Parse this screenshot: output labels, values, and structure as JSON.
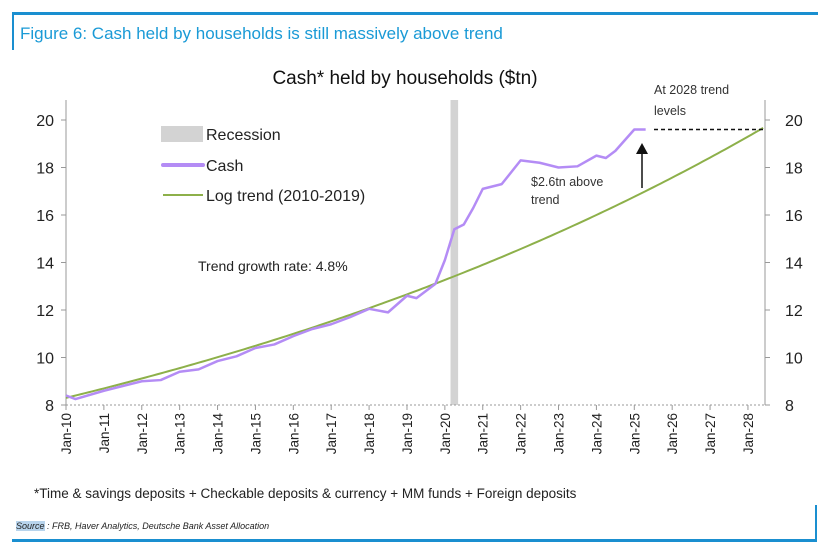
{
  "figure_title": "Figure 6: Cash held by households is still massively above trend",
  "footnote": "*Time & savings deposits + Checkable deposits & currency + MM funds + Foreign deposits",
  "source_label": "Source",
  "source_text": " : FRB, Haver Analytics, Deutsche Bank Asset Allocation",
  "chart_data": {
    "type": "line",
    "title": "Cash* held by households ($tn)",
    "ylim": [
      8,
      20
    ],
    "yticks": [
      "8",
      "10",
      "12",
      "14",
      "16",
      "18",
      "20"
    ],
    "xlim": [
      2010,
      2028.45
    ],
    "xticks": [
      "Jan-10",
      "Jan-11",
      "Jan-12",
      "Jan-13",
      "Jan-14",
      "Jan-15",
      "Jan-16",
      "Jan-17",
      "Jan-18",
      "Jan-19",
      "Jan-20",
      "Jan-21",
      "Jan-22",
      "Jan-23",
      "Jan-24",
      "Jan-25",
      "Jan-26",
      "Jan-27",
      "Jan-28"
    ],
    "legend": [
      "Recession",
      "Cash",
      "Log trend (2010-2019)"
    ],
    "legend_position": "top-left",
    "colors": {
      "cash": "#b48cf5",
      "trend": "#8db04a",
      "recession": "#d3d3d3"
    },
    "recession": [
      2020.15,
      2020.35
    ],
    "cash": {
      "x": [
        2010,
        2010.25,
        2011,
        2012,
        2012.5,
        2013,
        2013.5,
        2014,
        2014.5,
        2015,
        2015.5,
        2016,
        2016.5,
        2017,
        2017.5,
        2018,
        2018.5,
        2019,
        2019.25,
        2019.75,
        2020,
        2020.25,
        2020.5,
        2020.75,
        2021,
        2021.5,
        2022,
        2022.5,
        2023,
        2023.5,
        2024,
        2024.25,
        2024.5,
        2025,
        2025.3
      ],
      "y": [
        8.4,
        8.25,
        8.6,
        9.0,
        9.05,
        9.4,
        9.5,
        9.85,
        10.05,
        10.4,
        10.55,
        10.9,
        11.2,
        11.4,
        11.7,
        12.05,
        11.9,
        12.6,
        12.5,
        13.1,
        14.1,
        15.4,
        15.6,
        16.3,
        17.1,
        17.3,
        18.3,
        18.2,
        18.0,
        18.05,
        18.5,
        18.4,
        18.7,
        19.6,
        19.6
      ]
    },
    "trend": {
      "start_year": 2010,
      "start_value": 8.3,
      "growth_rate_pct": 4.8
    },
    "annotations": {
      "growth": "Trend growth rate: 4.8%",
      "gap": "$2.6tn above trend",
      "gap_line1": "$2.6tn above",
      "gap_line2": "trend",
      "target1": "At 2028 trend",
      "target2": "levels",
      "target_value": 19.6
    }
  }
}
